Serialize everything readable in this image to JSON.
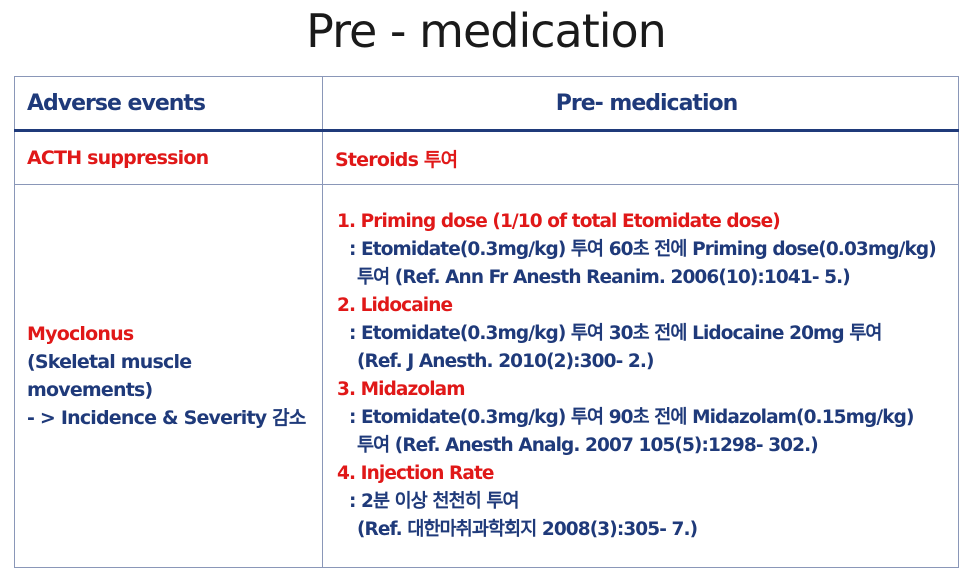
{
  "title": "Pre - medication",
  "table": {
    "headers": [
      "Adverse events",
      "Pre- medication"
    ],
    "row1": {
      "event": "ACTH suppression",
      "med": "Steroids 투여"
    },
    "row2": {
      "event": [
        "Myoclonus",
        "(Skeletal muscle movements)",
        "- > Incidence & Severity 감소"
      ],
      "items": [
        {
          "heading": "1. Priming dose (1/10 of total Etomidate dose)",
          "lines": [
            ": Etomidate(0.3mg/kg) 투여 60초 전에 Priming dose(0.03mg/kg)",
            "투여 (Ref. Ann Fr Anesth Reanim. 2006(10):1041- 5.)"
          ]
        },
        {
          "heading": "2. Lidocaine",
          "lines": [
            ": Etomidate(0.3mg/kg) 투여 30초 전에 Lidocaine 20mg 투여",
            "(Ref. J Anesth. 2010(2):300- 2.)"
          ]
        },
        {
          "heading": "3. Midazolam",
          "lines": [
            ": Etomidate(0.3mg/kg) 투여 90초 전에 Midazolam(0.15mg/kg)",
            "투여 (Ref. Anesth Analg. 2007 105(5):1298- 302.)"
          ]
        },
        {
          "heading": "4. Injection Rate",
          "lines": [
            ": 2분 이상 천천히 투여",
            "(Ref. 대한마취과학회지 2008(3):305- 7.)"
          ]
        }
      ]
    }
  },
  "colors": {
    "header_text": "#1f3a7a",
    "accent_red": "#e01818",
    "border": "#8a97b8"
  }
}
